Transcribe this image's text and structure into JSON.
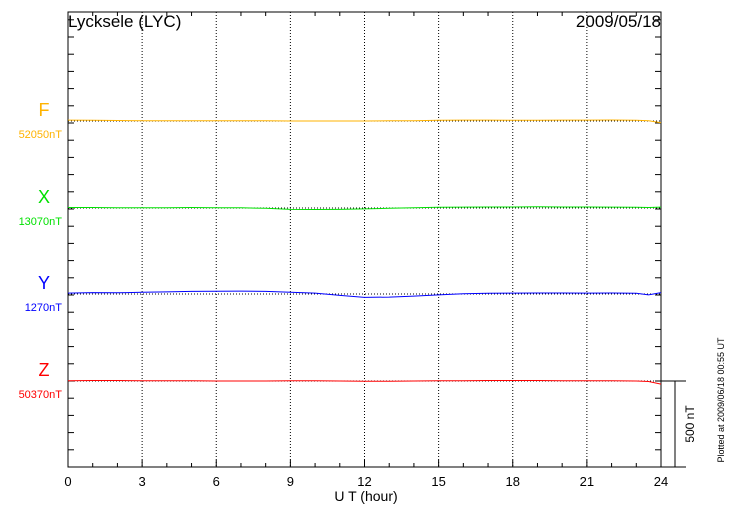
{
  "chart_data": {
    "type": "line",
    "title": "Lycksele (LYC)",
    "date": "2009/05/18",
    "xlabel": "U T (hour)",
    "xlim": [
      0,
      24
    ],
    "xticks": [
      "0",
      "3",
      "6",
      "9",
      "12",
      "15",
      "18",
      "21",
      "24"
    ],
    "grid": "vertical dotted every 3 hours",
    "scale_bar": "500 nT",
    "footer": "Plotted at 2009/06/18 00:55 UT",
    "x": [
      0,
      1,
      2,
      3,
      4,
      5,
      6,
      7,
      8,
      9,
      10,
      11,
      12,
      13,
      14,
      15,
      16,
      17,
      18,
      19,
      20,
      21,
      22,
      23,
      23.5,
      24
    ],
    "series": [
      {
        "name": "F",
        "baseline": "52050nT",
        "color": "#ffb300",
        "values": [
          5,
          4,
          3,
          2,
          1,
          1,
          2,
          2,
          1,
          0,
          0,
          0,
          0,
          1,
          2,
          4,
          5,
          5,
          4,
          4,
          5,
          5,
          6,
          4,
          2,
          -10
        ]
      },
      {
        "name": "X",
        "baseline": "13070nT",
        "color": "#00e000",
        "values": [
          3,
          3,
          2,
          2,
          2,
          3,
          2,
          1,
          -2,
          -8,
          -9,
          -8,
          -5,
          -2,
          1,
          4,
          5,
          6,
          6,
          7,
          6,
          6,
          5,
          4,
          3,
          5
        ]
      },
      {
        "name": "Y",
        "baseline": "1270nT",
        "color": "#0000ff",
        "values": [
          5,
          8,
          7,
          10,
          12,
          15,
          16,
          17,
          15,
          10,
          5,
          -8,
          -20,
          -18,
          -12,
          -5,
          2,
          4,
          5,
          6,
          6,
          5,
          6,
          4,
          -5,
          8
        ]
      },
      {
        "name": "Z",
        "baseline": "50370nT",
        "color": "#ff0000",
        "values": [
          2,
          3,
          3,
          1,
          1,
          1,
          0,
          0,
          0,
          1,
          1,
          0,
          -1,
          -1,
          0,
          1,
          2,
          3,
          3,
          3,
          2,
          2,
          2,
          0,
          -3,
          -18
        ]
      }
    ]
  }
}
